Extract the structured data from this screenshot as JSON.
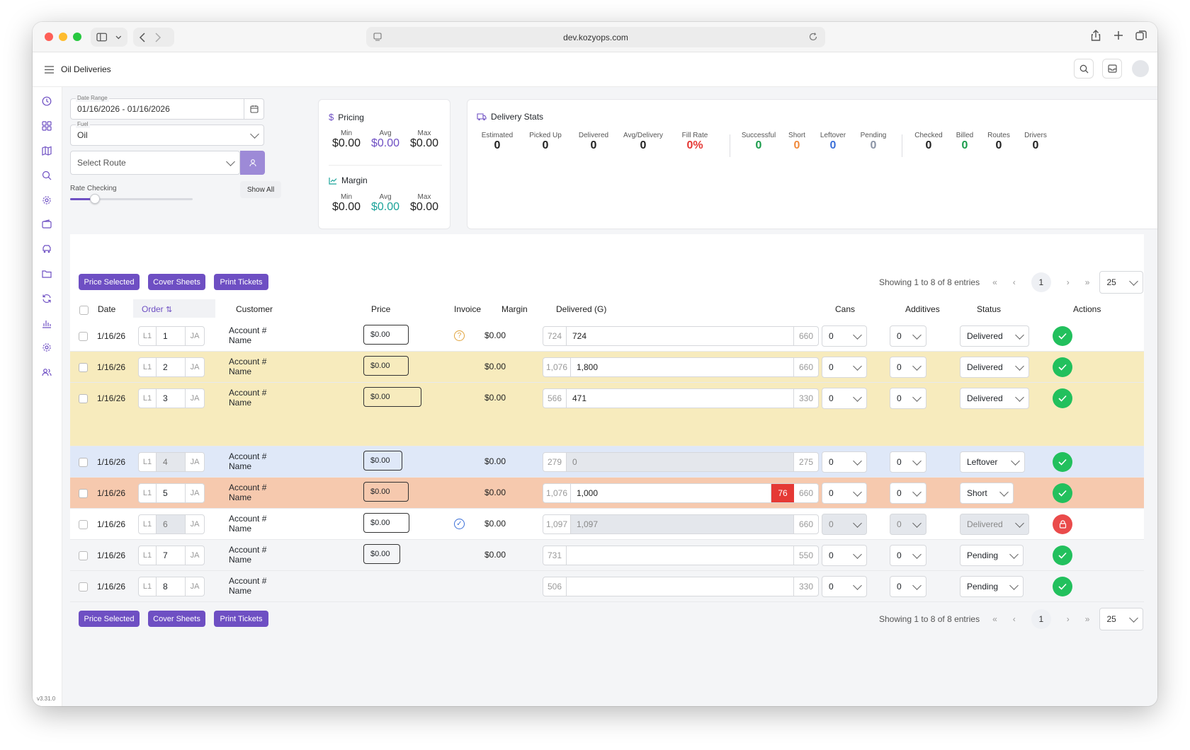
{
  "browser": {
    "url": "dev.kozyops.com"
  },
  "app": {
    "title": "Oil Deliveries",
    "version": "v3.31.0"
  },
  "filters": {
    "date_range_label": "Date Range",
    "date_range_value": "01/16/2026 - 01/16/2026",
    "fuel_label": "Fuel",
    "fuel_value": "Oil",
    "route_placeholder": "Select Route",
    "rate_checking_label": "Rate Checking",
    "show_all": "Show All",
    "rate_slider_fraction": 0.2
  },
  "pricing": {
    "title": "Pricing",
    "labels": [
      "Min",
      "Avg",
      "Max"
    ],
    "values": [
      "$0.00",
      "$0.00",
      "$0.00"
    ]
  },
  "margin": {
    "title": "Margin",
    "labels": [
      "Min",
      "Avg",
      "Max"
    ],
    "values": [
      "$0.00",
      "$0.00",
      "$0.00"
    ]
  },
  "delivery_stats": {
    "title": "Delivery Stats",
    "groups": [
      [
        {
          "label": "Estimated",
          "value": "0",
          "color": "#222222"
        },
        {
          "label": "Picked Up",
          "value": "0",
          "color": "#222222"
        },
        {
          "label": "Delivered",
          "value": "0",
          "color": "#222222"
        },
        {
          "label": "Avg/Delivery",
          "value": "0",
          "color": "#222222"
        },
        {
          "label": "Fill Rate",
          "value": "0%",
          "color": "#e53935"
        }
      ],
      [
        {
          "label": "Successful",
          "value": "0",
          "color": "#1a9c4b"
        },
        {
          "label": "Short",
          "value": "0",
          "color": "#f08a3c"
        },
        {
          "label": "Leftover",
          "value": "0",
          "color": "#3b6fd8"
        },
        {
          "label": "Pending",
          "value": "0",
          "color": "#8a93a5"
        }
      ],
      [
        {
          "label": "Checked",
          "value": "0",
          "color": "#222222"
        },
        {
          "label": "Billed",
          "value": "0",
          "color": "#1a9c4b"
        },
        {
          "label": "Routes",
          "value": "0",
          "color": "#222222"
        },
        {
          "label": "Drivers",
          "value": "0",
          "color": "#222222"
        }
      ]
    ]
  },
  "toolbar": {
    "price_selected": "Price Selected",
    "cover_sheets": "Cover Sheets",
    "print_tickets": "Print Tickets"
  },
  "pagination": {
    "summary": "Showing 1 to 8 of 8 entries",
    "page": "1",
    "page_size": "25"
  },
  "table": {
    "headers": {
      "date": "Date",
      "order": "Order",
      "customer": "Customer",
      "price": "Price",
      "invoice": "Invoice",
      "margin": "Margin",
      "delivered": "Delivered (G)",
      "cans": "Cans",
      "additives": "Additives",
      "status": "Status",
      "actions": "Actions"
    },
    "rows": [
      {
        "date": "1/16/26",
        "route": "L1",
        "order": "1",
        "driver": "JA",
        "account": "Account #",
        "name": "Name",
        "price": "$0.00",
        "invoice": "question",
        "margin": "$0.00",
        "estimated": "724",
        "delivered": "724",
        "capacity": "660",
        "cans": "0",
        "additives": "0",
        "status": "Delivered",
        "action": "approve"
      },
      {
        "date": "1/16/26",
        "route": "L1",
        "order": "2",
        "driver": "JA",
        "account": "Account #",
        "name": "Name",
        "price": "$0.00",
        "invoice": "",
        "margin": "$0.00",
        "estimated": "1,076",
        "delivered": "1,800",
        "capacity": "660",
        "cans": "0",
        "additives": "0",
        "status": "Delivered",
        "action": "approve"
      },
      {
        "date": "1/16/26",
        "route": "L1",
        "order": "3",
        "driver": "JA",
        "account": "Account #",
        "name": "Name",
        "price": "$0.00",
        "invoice": "",
        "margin": "$0.00",
        "estimated": "566",
        "delivered": "471",
        "capacity": "330",
        "cans": "0",
        "additives": "0",
        "status": "Delivered",
        "action": "approve"
      },
      {
        "date": "1/16/26",
        "route": "L1",
        "order": "4",
        "driver": "JA",
        "account": "Account #",
        "name": "Name",
        "price": "$0.00",
        "invoice": "",
        "margin": "$0.00",
        "estimated": "279",
        "delivered": "0",
        "capacity": "275",
        "cans": "0",
        "additives": "0",
        "status": "Leftover",
        "action": "approve"
      },
      {
        "date": "1/16/26",
        "route": "L1",
        "order": "5",
        "driver": "JA",
        "account": "Account #",
        "name": "Name",
        "price": "$0.00",
        "invoice": "",
        "margin": "$0.00",
        "estimated": "1,076",
        "delivered": "1,000",
        "shortfall": "76",
        "capacity": "660",
        "cans": "0",
        "additives": "0",
        "status": "Short",
        "action": "approve"
      },
      {
        "date": "1/16/26",
        "route": "L1",
        "order": "6",
        "driver": "JA",
        "account": "Account #",
        "name": "Name",
        "price": "$0.00",
        "invoice": "checked",
        "margin": "$0.00",
        "estimated": "1,097",
        "delivered": "1,097",
        "capacity": "660",
        "cans": "0",
        "additives": "0",
        "status": "Delivered",
        "action": "locked"
      },
      {
        "date": "1/16/26",
        "route": "L1",
        "order": "7",
        "driver": "JA",
        "account": "Account #",
        "name": "Name",
        "price": "$0.00",
        "invoice": "",
        "margin": "$0.00",
        "estimated": "731",
        "delivered": "",
        "capacity": "550",
        "cans": "0",
        "additives": "0",
        "status": "Pending",
        "action": "approve"
      },
      {
        "date": "1/16/26",
        "route": "L1",
        "order": "8",
        "driver": "JA",
        "account": "Account #",
        "name": "Name",
        "price": "",
        "invoice": "",
        "margin": "",
        "estimated": "506",
        "delivered": "",
        "capacity": "330",
        "cans": "0",
        "additives": "0",
        "status": "Pending",
        "action": "approve"
      }
    ]
  },
  "colors": {
    "accent": "#6e4fc3",
    "success": "#22c05d",
    "danger": "#ea4b4b",
    "row_warning": "#f7ebbd",
    "row_info": "#dfe8f8",
    "row_short": "#f6c9ae"
  }
}
